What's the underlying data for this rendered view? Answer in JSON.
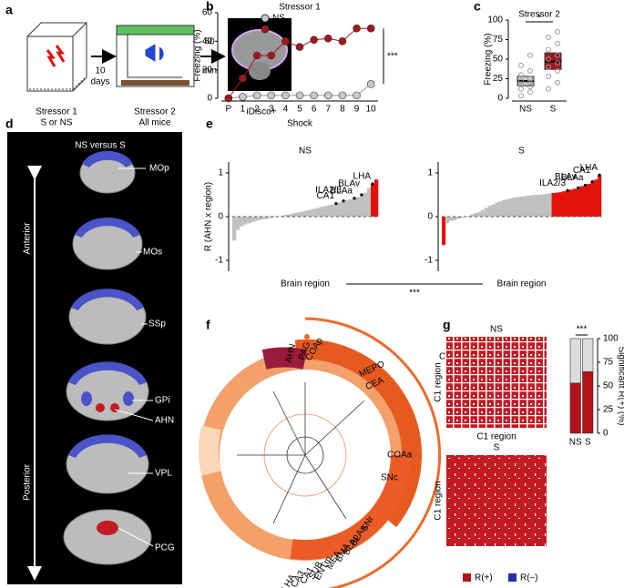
{
  "panel_labels": [
    "a",
    "b",
    "c",
    "d",
    "e",
    "f",
    "g"
  ],
  "a": {
    "stressor1": "Stressor 1",
    "stressor1_sub": "S or NS",
    "gap1": [
      "10",
      "days"
    ],
    "stressor2": "Stressor 2",
    "stressor2_sub": "All mice",
    "gap2": [
      "60",
      "min"
    ],
    "imaging": "iDisco+"
  },
  "d": {
    "title": "NS versus S",
    "anterior": "Anterior",
    "posterior": "Posterior",
    "regions": [
      "MOp",
      "MOs",
      "SSp",
      "GPi",
      "AHN",
      "VPL",
      "PCG"
    ]
  },
  "f": {
    "cluster": "C1",
    "labels": [
      "AHN",
      "PAG",
      "COAp",
      "MEPO",
      "CEA",
      "COAa",
      "SNc",
      "SNr",
      "BLAa",
      "BLAp",
      "BMA",
      "MEA",
      "ENTm",
      "SUB",
      "CA1",
      "CA3",
      "LHA"
    ]
  },
  "g": {
    "heatmaps": [
      {
        "title": "NS",
        "xlabel": "C1 region",
        "ylabel": "C1 region"
      },
      {
        "title": "S",
        "ylabel": "C1 region"
      }
    ],
    "legend": [
      {
        "name": "R(+)",
        "color": "#b3121a"
      },
      {
        "name": "R(–)",
        "color": "#1f2fb0"
      }
    ]
  },
  "chart_data": [
    {
      "type": "line",
      "title": "Stressor 1",
      "xlabel": "Shock",
      "ylabel": "Freezing (%)",
      "categories": [
        "P",
        "1",
        "2",
        "3",
        "4",
        "5",
        "6",
        "7",
        "8",
        "9",
        "10"
      ],
      "series": [
        {
          "name": "NS",
          "color": "#c8c8c8",
          "values": [
            0,
            1,
            2,
            2,
            2,
            2,
            2,
            2,
            2,
            2,
            10
          ]
        },
        {
          "name": "S",
          "color": "#a3161c",
          "values": [
            0,
            14,
            30,
            30,
            40,
            36,
            41,
            42,
            40,
            49,
            49
          ]
        }
      ],
      "ylim": [
        0,
        60
      ],
      "yticks": [
        0,
        20,
        40,
        60
      ],
      "annotation": "***"
    },
    {
      "type": "box",
      "title": "Stressor 2",
      "ylabel": "Freezing (%)",
      "categories": [
        "NS",
        "S"
      ],
      "colors": [
        "#c8c8c8",
        "#a3161c"
      ],
      "medians": [
        22,
        47
      ],
      "q1": [
        16,
        37
      ],
      "q3": [
        28,
        58
      ],
      "points": [
        [
          3,
          8,
          12,
          15,
          18,
          20,
          22,
          25,
          30,
          35,
          42,
          55
        ],
        [
          12,
          20,
          28,
          35,
          40,
          45,
          50,
          55,
          62,
          70,
          78,
          85
        ]
      ],
      "ylim": [
        0,
        100
      ],
      "yticks": [
        0,
        25,
        50,
        75,
        100
      ],
      "annotation": "*"
    },
    {
      "type": "bar",
      "title": "NS",
      "xlabel": "Brain region",
      "ylabel": "R (AHN x region)",
      "comparison": "***",
      "series": [
        {
          "color": "#c0c0c0",
          "values": [
            -0.55,
            -0.3,
            -0.22,
            -0.18,
            -0.15,
            -0.12,
            -0.1,
            -0.08,
            -0.06,
            -0.05,
            -0.03,
            -0.02,
            0,
            0.02,
            0.04,
            0.05,
            0.07,
            0.09,
            0.1,
            0.12,
            0.14,
            0.16,
            0.18,
            0.2,
            0.22,
            0.24,
            0.26,
            0.28,
            0.3,
            0.33,
            0.36,
            0.38,
            0.4,
            0.42,
            0.45,
            0.5,
            0.55,
            0.65
          ]
        },
        {
          "color": "#e3120b",
          "values": [
            0.75,
            0.85
          ]
        }
      ],
      "annotations": [
        {
          "text": "CA1",
          "x": 28
        },
        {
          "text": "ILA2/3",
          "x": 30
        },
        {
          "text": "BLAa",
          "x": 33
        },
        {
          "text": "BLAv",
          "x": 35
        },
        {
          "text": "LHA",
          "x": 38
        }
      ],
      "ylim": [
        -1.25,
        1.25
      ],
      "yticks": [
        -1,
        0,
        1
      ]
    },
    {
      "type": "bar",
      "title": "S",
      "xlabel": "Brain region",
      "series": [
        {
          "color": "#e3120b",
          "values": [
            -0.65
          ]
        },
        {
          "color": "#c0c0c0",
          "values": [
            -0.15,
            -0.1,
            -0.08,
            -0.05,
            -0.03,
            0,
            0.02,
            0.05,
            0.08,
            0.1,
            0.15,
            0.2,
            0.25,
            0.28,
            0.32,
            0.35,
            0.38,
            0.4,
            0.42,
            0.44,
            0.45,
            0.46,
            0.47,
            0.48,
            0.49,
            0.5,
            0.5,
            0.51,
            0.52,
            0.53
          ]
        },
        {
          "color": "#e3120b",
          "values": [
            0.54,
            0.55,
            0.56,
            0.58,
            0.6,
            0.62,
            0.64,
            0.66,
            0.7,
            0.72,
            0.75,
            0.8,
            0.85,
            0.95
          ]
        }
      ],
      "annotations": [
        {
          "text": "ILA2/3",
          "x": 35
        },
        {
          "text": "BLAv",
          "x": 38
        },
        {
          "text": "BLAa",
          "x": 40
        },
        {
          "text": "CA1",
          "x": 42
        },
        {
          "text": "LHA",
          "x": 44
        }
      ],
      "ylim": [
        -1.25,
        1.25
      ],
      "yticks": [
        -1,
        0,
        1
      ]
    },
    {
      "type": "stacked",
      "ylabel": "Significant R(+) (%)",
      "categories": [
        "NS",
        "S"
      ],
      "series": [
        {
          "color": "#b3121a",
          "values": [
            53,
            65
          ]
        },
        {
          "color": "#dcdcdc",
          "values": [
            47,
            35
          ]
        }
      ],
      "ylim": [
        0,
        100
      ],
      "yticks": [
        0,
        25,
        50,
        75,
        100
      ],
      "annotation": "***"
    }
  ]
}
